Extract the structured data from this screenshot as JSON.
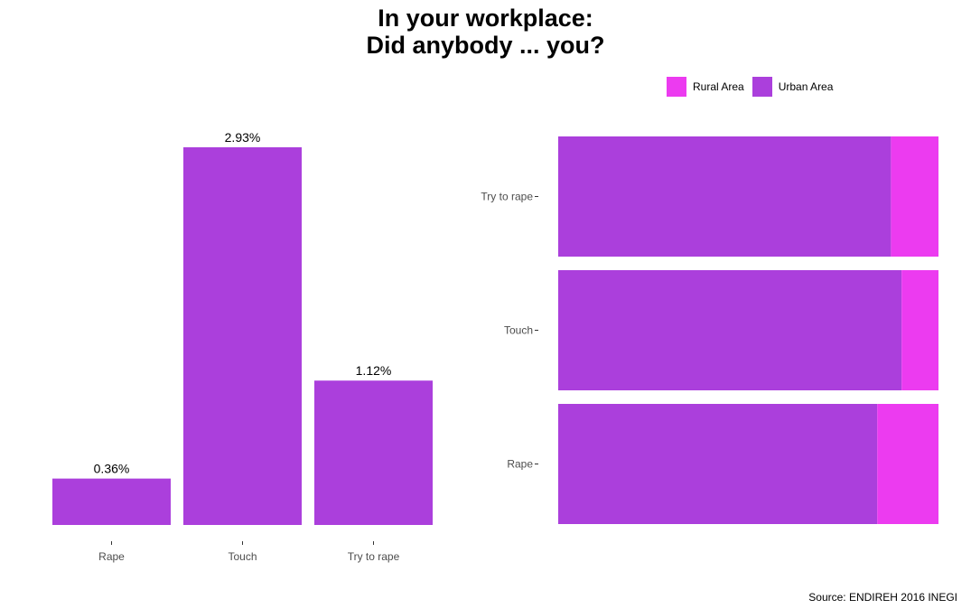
{
  "title_line1": "In your workplace:",
  "title_line2": "Did anybody ... you?",
  "source": "Source: ENDIREH 2016 INEGI",
  "colors": {
    "urban": "#ab3fdc",
    "rural": "#ec3bf0"
  },
  "chart_data": [
    {
      "type": "bar",
      "categories": [
        "Rape",
        "Touch",
        "Try to rape"
      ],
      "values": [
        0.36,
        2.93,
        1.12
      ],
      "data_labels": [
        "0.36%",
        "2.93%",
        "1.12%"
      ],
      "ylim": [
        0,
        3.1
      ],
      "color": "#ab3fdc",
      "grid": false
    },
    {
      "type": "bar",
      "orientation": "horizontal",
      "stacked": "proportional",
      "categories": [
        "Rape",
        "Touch",
        "Try to rape"
      ],
      "series": [
        {
          "name": "Urban Area",
          "values": [
            0.839,
            0.903,
            0.875
          ],
          "color": "#ab3fdc"
        },
        {
          "name": "Rural Area",
          "values": [
            0.161,
            0.097,
            0.125
          ],
          "color": "#ec3bf0"
        }
      ],
      "legend": {
        "position": "top",
        "entries": [
          "Rural Area",
          "Urban Area"
        ]
      },
      "xlim": [
        0,
        1
      ],
      "grid": false
    }
  ]
}
